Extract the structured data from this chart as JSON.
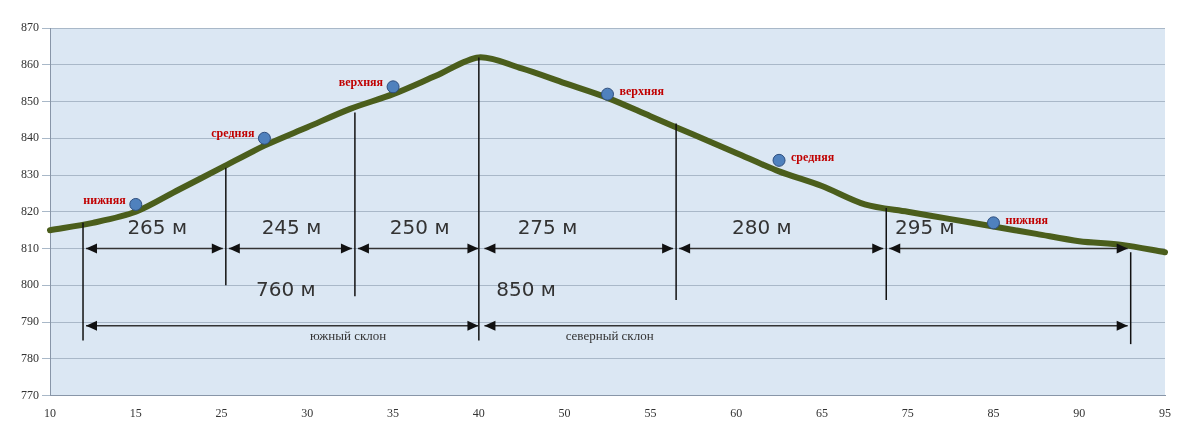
{
  "chart_data": {
    "type": "line",
    "categories": [
      "10",
      null,
      "15",
      null,
      "25",
      null,
      "30",
      null,
      "35",
      null,
      "40",
      null,
      "50",
      null,
      "55",
      null,
      "60",
      null,
      "65",
      null,
      "75",
      null,
      "85",
      null,
      "90",
      null,
      "95"
    ],
    "series": [
      {
        "type": "line",
        "color": "#4b5e1c",
        "values": [
          815,
          817,
          820,
          826,
          832,
          838,
          843,
          848,
          852,
          857,
          862,
          859,
          855,
          851,
          846,
          841,
          836,
          831,
          827,
          822,
          820,
          818,
          816,
          814,
          812,
          811,
          809
        ]
      },
      {
        "type": "scatter",
        "color": "#4f81bd",
        "marker": "circle",
        "values": [
          null,
          null,
          822,
          null,
          null,
          840,
          null,
          null,
          854,
          null,
          null,
          null,
          null,
          852,
          null,
          null,
          null,
          834,
          null,
          null,
          null,
          null,
          817,
          null,
          null,
          null,
          null
        ],
        "value_labels": [
          null,
          null,
          "нижняя",
          null,
          null,
          "средняя",
          null,
          null,
          "верхняя",
          null,
          null,
          null,
          null,
          "верхняя",
          null,
          null,
          null,
          "средняя",
          null,
          null,
          null,
          null,
          "нижняя",
          null,
          null,
          null,
          null
        ]
      }
    ],
    "ref_lines": [
      {
        "axis": "x",
        "value": "40",
        "color": "#111111"
      }
    ],
    "ylim": [
      770,
      870
    ],
    "yticks": [
      770,
      780,
      790,
      800,
      810,
      820,
      830,
      840,
      850,
      860,
      870
    ],
    "grid": "y",
    "annotations": [
      "265 м",
      "245 м",
      "250 м",
      "275 м",
      "280 м",
      "295 м",
      "760 м",
      "850 м",
      "южный склон",
      "северный склон"
    ]
  }
}
